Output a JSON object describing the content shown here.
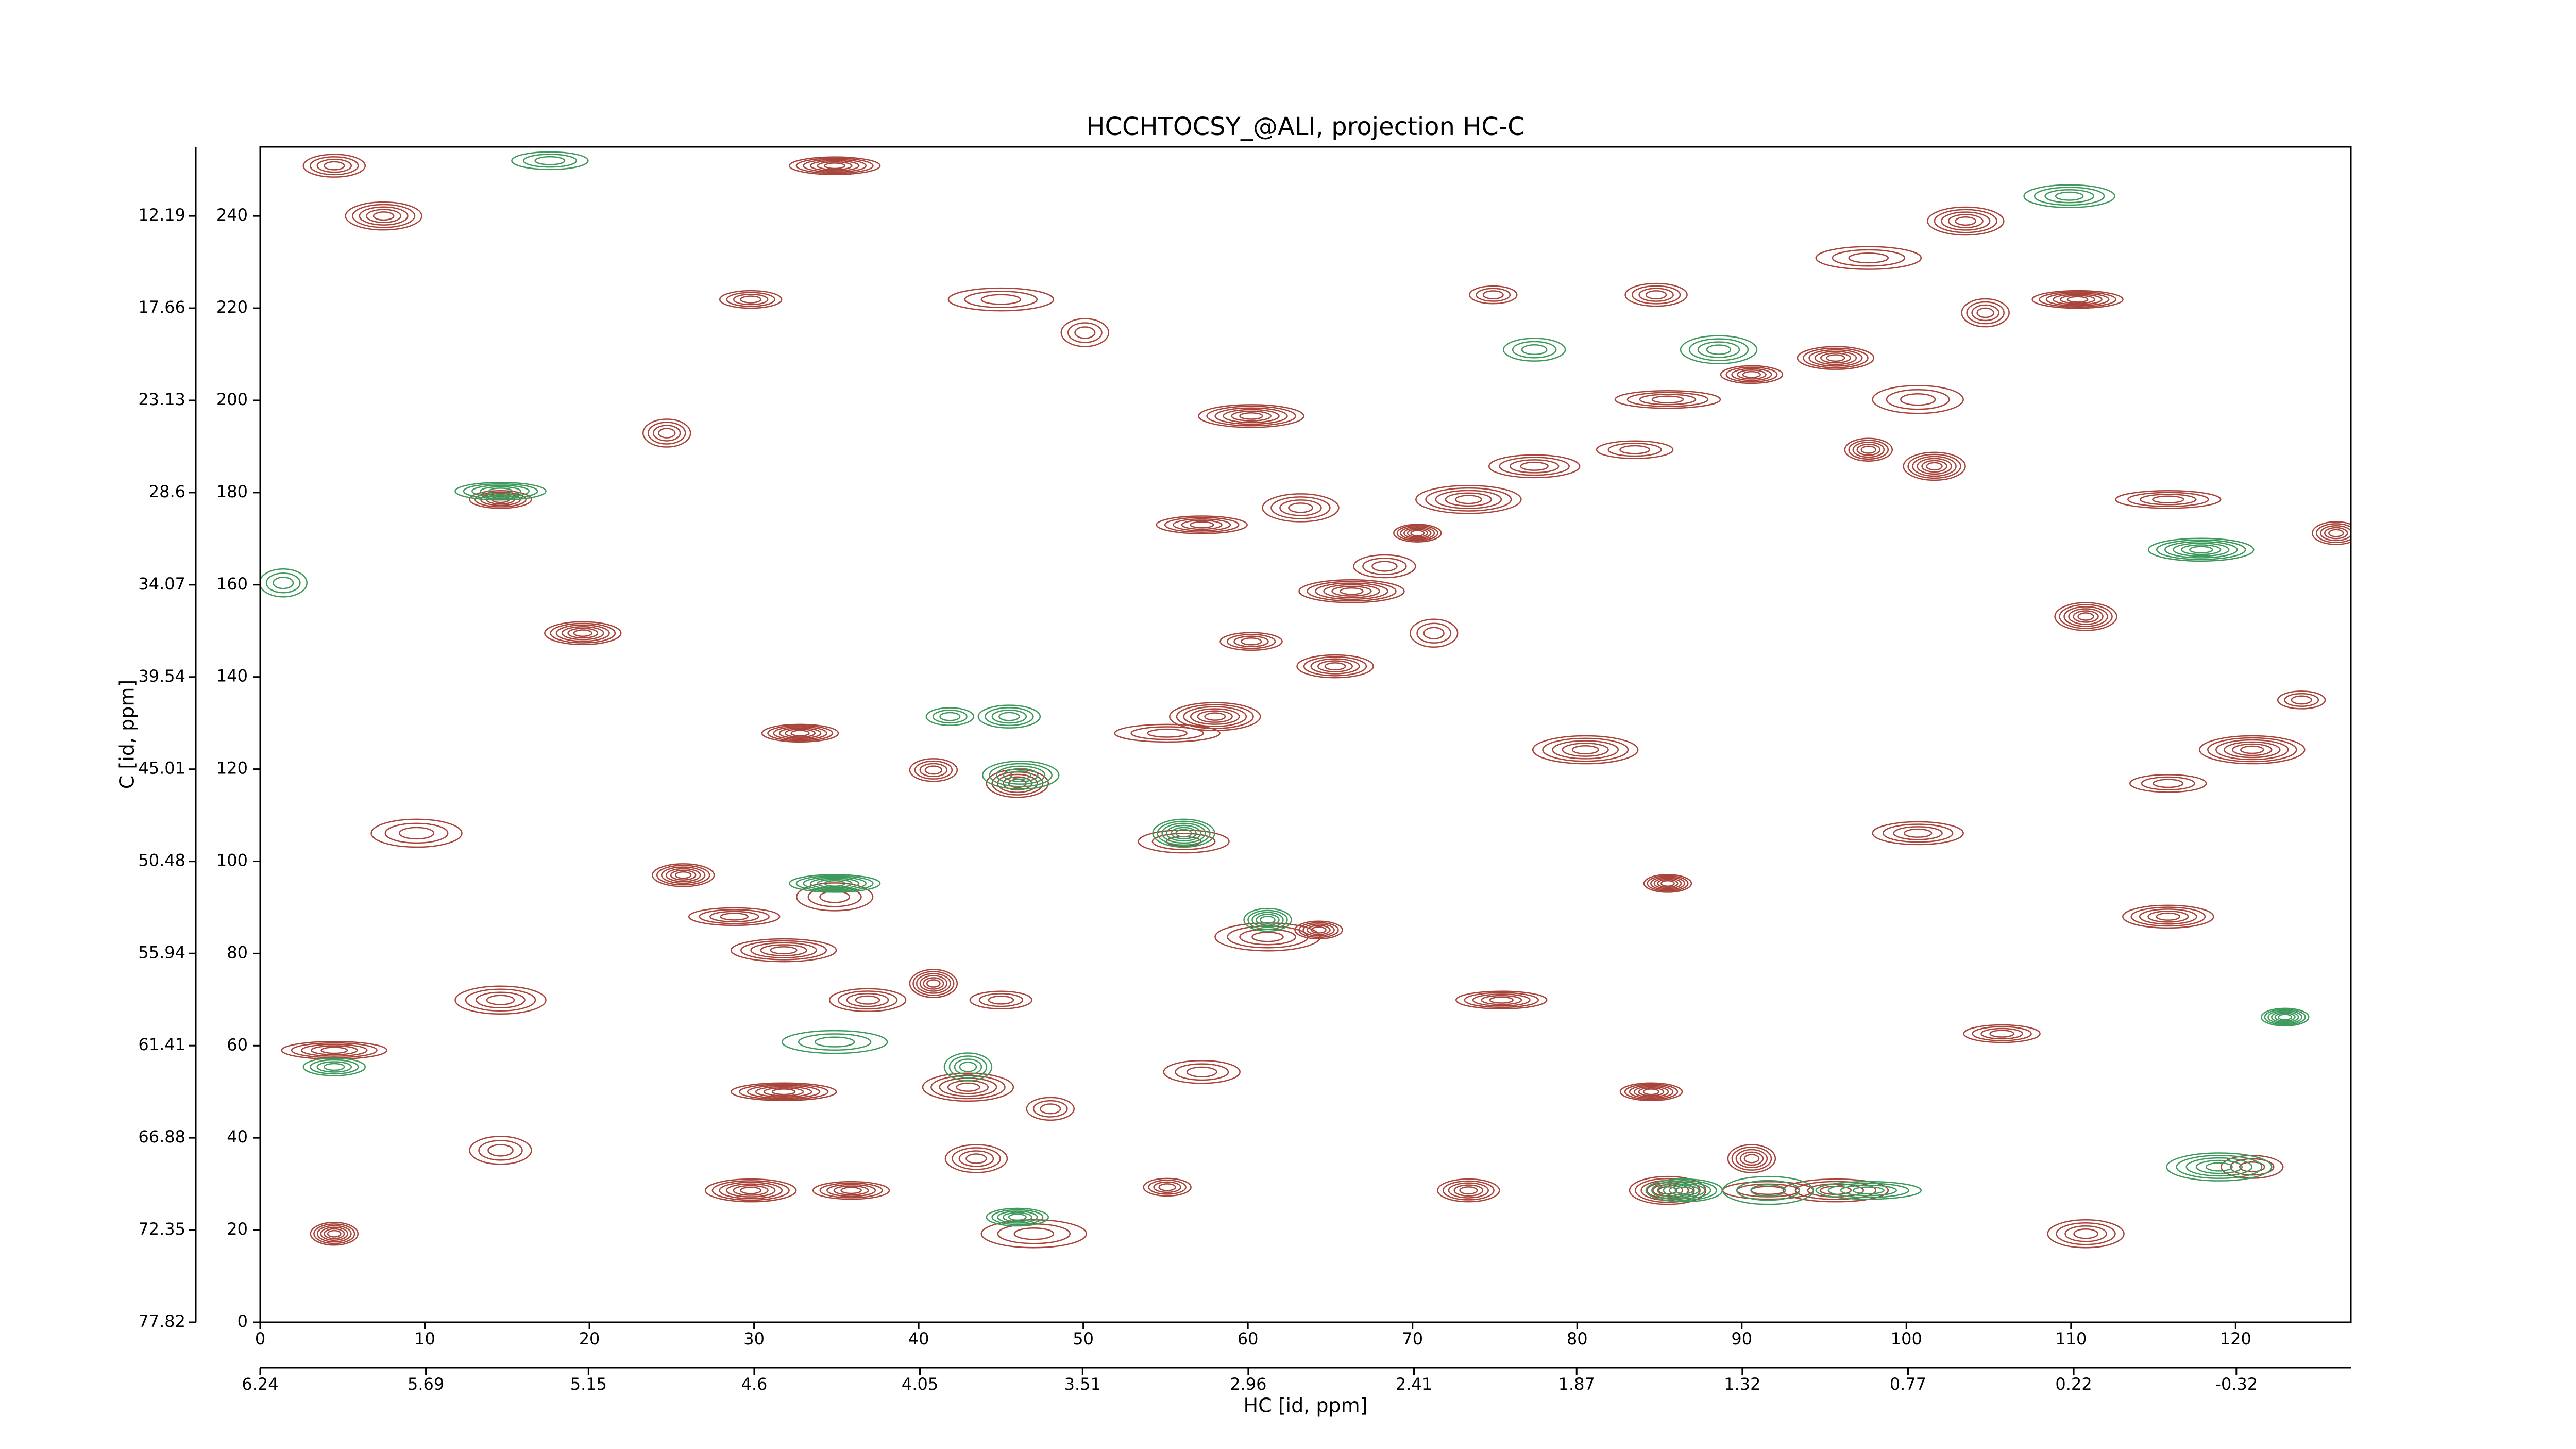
{
  "chart_data": {
    "type": "contour",
    "title": "HCCHTOCSY_@ALI, projection HC-C",
    "xlabel": "HC [id, ppm]",
    "ylabel": "C [id, ppm]",
    "xlim": [
      0,
      127
    ],
    "xticks": [
      0,
      10,
      20,
      30,
      40,
      50,
      60,
      70,
      80,
      90,
      100,
      110,
      120
    ],
    "ylim": [
      0,
      255
    ],
    "yticks": [
      0,
      20,
      40,
      60,
      80,
      100,
      120,
      140,
      160,
      180,
      200,
      220,
      240
    ],
    "x2lim": [
      6.24,
      -0.7
    ],
    "x2ticks": [
      6.24,
      5.69,
      5.15,
      4.6,
      4.05,
      3.51,
      2.96,
      2.41,
      1.87,
      1.32,
      0.77,
      0.22,
      -0.32
    ],
    "y2lim": [
      77.82,
      8.09
    ],
    "y2ticks": [
      77.82,
      72.35,
      66.88,
      61.41,
      55.94,
      50.48,
      45.01,
      39.54,
      34.07,
      28.6,
      23.13,
      17.66,
      12.19
    ],
    "series": [
      {
        "color": "#a8443a",
        "x": [
          74.9,
          84.8,
          103.6,
          110.4,
          97.7,
          104.8,
          90.6,
          95.7,
          100.7,
          85.5,
          97.7,
          101.7,
          83.5,
          77.4,
          73.4,
          70.3,
          68.3,
          63.2,
          57.2,
          66.3,
          71.3,
          60.2,
          65.3,
          58.0,
          55.1,
          40.9,
          46.0,
          32.8,
          56.1,
          61.2,
          64.3,
          25.7,
          34.9,
          28.8,
          31.8,
          40.9,
          45.0,
          36.9,
          43.0,
          31.8,
          48.0,
          43.5,
          35.9,
          29.8,
          47.0,
          55.1,
          73.4,
          85.5,
          91.6,
          95.7,
          90.6,
          84.5,
          57.2,
          14.6,
          4.5,
          4.5,
          14.6,
          105.8,
          115.9,
          121.0,
          124.0,
          4.5,
          7.5,
          34.9,
          45.0,
          24.7,
          14.6,
          19.6,
          9.5,
          115.9,
          126.1,
          110.9,
          115.9,
          100.7,
          80.5,
          85.5,
          121.0,
          110.9,
          75.4,
          60.2,
          50.1,
          29.8
        ],
        "values": [
          222.9,
          222.9,
          238.9,
          221.9,
          230.9,
          219.0,
          205.6,
          209.2,
          200.2,
          200.2,
          189.3,
          185.7,
          189.3,
          185.7,
          178.5,
          171.2,
          164.0,
          176.7,
          173.0,
          158.6,
          149.5,
          147.7,
          142.3,
          131.4,
          127.8,
          119.8,
          116.9,
          127.8,
          104.3,
          83.6,
          85.1,
          97.0,
          92.3,
          88.0,
          80.7,
          73.5,
          69.9,
          69.9,
          51.0,
          50.0,
          46.3,
          35.5,
          28.6,
          28.6,
          19.2,
          29.3,
          28.6,
          28.6,
          28.6,
          28.6,
          35.5,
          50.0,
          54.3,
          69.9,
          59.0,
          19.2,
          37.3,
          62.6,
          88.0,
          124.2,
          135.0,
          250.9,
          240.0,
          250.9,
          221.9,
          192.9,
          178.5,
          149.5,
          106.1,
          178.5,
          171.2,
          153.1,
          116.9,
          106.1,
          124.2,
          95.2,
          33.7,
          19.2,
          69.9,
          196.6,
          214.7,
          221.9
        ]
      },
      {
        "color": "#3d9a5c",
        "x": [
          41.9,
          45.5,
          46.2,
          34.9,
          34.9,
          43.0,
          46.0,
          86.5,
          91.6,
          97.7,
          61.2,
          56.1,
          17.6,
          109.9,
          119.0,
          123.0,
          77.4,
          88.6,
          14.6,
          117.9,
          1.4,
          4.5
        ],
        "values": [
          131.4,
          131.4,
          118.7,
          95.2,
          60.8,
          55.4,
          22.8,
          28.6,
          28.6,
          28.6,
          87.3,
          106.1,
          252.0,
          244.3,
          33.7,
          66.2,
          211.0,
          211.0,
          180.3,
          167.6,
          160.4,
          55.4
        ]
      }
    ]
  }
}
